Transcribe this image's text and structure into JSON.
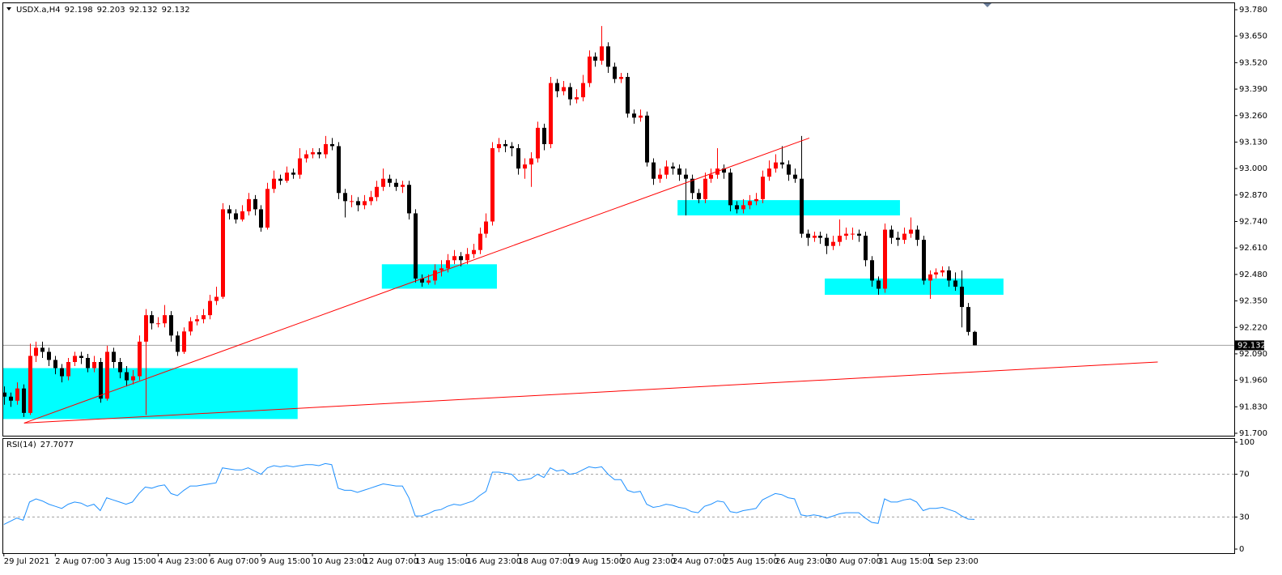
{
  "chart_data": {
    "type": "candlestick",
    "symbol": "USDX.a,H4",
    "up_color": "#ff0000",
    "down_color": "#000000",
    "current_price_line": true,
    "xlim": [
      -0.6,
      191.4
    ],
    "ylim": [
      91.7,
      93.78
    ],
    "yticks": [
      {
        "value": 91.7,
        "label": "91.700"
      },
      {
        "value": 91.83,
        "label": "91.830"
      },
      {
        "value": 91.96,
        "label": "91.960"
      },
      {
        "value": 92.09,
        "label": "92.090"
      },
      {
        "value": 92.22,
        "label": "92.220"
      },
      {
        "value": 92.35,
        "label": "92.350"
      },
      {
        "value": 92.48,
        "label": "92.480"
      },
      {
        "value": 92.61,
        "label": "92.610"
      },
      {
        "value": 92.74,
        "label": "92.740"
      },
      {
        "value": 92.87,
        "label": "92.870"
      },
      {
        "value": 93.0,
        "label": "93.000"
      },
      {
        "value": 93.13,
        "label": "93.130"
      },
      {
        "value": 93.26,
        "label": "93.260"
      },
      {
        "value": 93.39,
        "label": "93.390"
      },
      {
        "value": 93.52,
        "label": "93.520"
      },
      {
        "value": 93.65,
        "label": "93.650"
      },
      {
        "value": 93.78,
        "label": "93.780"
      }
    ],
    "categories": [
      "29 Jul 2021",
      null,
      null,
      null,
      null,
      null,
      null,
      null,
      "2 Aug 07:00",
      null,
      null,
      null,
      null,
      null,
      null,
      null,
      "3 Aug 15:00",
      null,
      null,
      null,
      null,
      null,
      null,
      null,
      "4 Aug 23:00",
      null,
      null,
      null,
      null,
      null,
      null,
      null,
      "6 Aug 07:00",
      null,
      null,
      null,
      null,
      null,
      null,
      null,
      "9 Aug 15:00",
      null,
      null,
      null,
      null,
      null,
      null,
      null,
      "10 Aug 23:00",
      null,
      null,
      null,
      null,
      null,
      null,
      null,
      "12 Aug 07:00",
      null,
      null,
      null,
      null,
      null,
      null,
      null,
      "13 Aug 15:00",
      null,
      null,
      null,
      null,
      null,
      null,
      null,
      "16 Aug 23:00",
      null,
      null,
      null,
      null,
      null,
      null,
      null,
      "18 Aug 07:00",
      null,
      null,
      null,
      null,
      null,
      null,
      null,
      "19 Aug 15:00",
      null,
      null,
      null,
      null,
      null,
      null,
      null,
      "20 Aug 23:00",
      null,
      null,
      null,
      null,
      null,
      null,
      null,
      "24 Aug 07:00",
      null,
      null,
      null,
      null,
      null,
      null,
      null,
      "25 Aug 15:00",
      null,
      null,
      null,
      null,
      null,
      null,
      null,
      "26 Aug 23:00",
      null,
      null,
      null,
      null,
      null,
      null,
      null,
      "30 Aug 07:00",
      null,
      null,
      null,
      null,
      null,
      null,
      null,
      "31 Aug 15:00",
      null,
      null,
      null,
      null,
      null,
      null,
      null,
      "1 Sep 23:00",
      null,
      null,
      null,
      null,
      null,
      null,
      null
    ],
    "ohlc": [
      [
        91.9,
        91.93,
        91.84,
        91.88
      ],
      [
        91.88,
        91.9,
        91.83,
        91.86
      ],
      [
        91.86,
        91.95,
        91.84,
        91.92
      ],
      [
        91.92,
        91.94,
        91.78,
        91.8
      ],
      [
        91.8,
        92.14,
        91.79,
        92.08
      ],
      [
        92.08,
        92.15,
        92.05,
        92.12
      ],
      [
        92.12,
        92.15,
        92.07,
        92.1
      ],
      [
        92.1,
        92.12,
        92.03,
        92.06
      ],
      [
        92.06,
        92.08,
        91.99,
        92.02
      ],
      [
        92.02,
        92.04,
        91.95,
        91.98
      ],
      [
        91.98,
        92.07,
        91.96,
        92.05
      ],
      [
        92.05,
        92.1,
        92.03,
        92.08
      ],
      [
        92.08,
        92.1,
        92.04,
        92.07
      ],
      [
        92.07,
        92.09,
        92.0,
        92.02
      ],
      [
        92.02,
        92.08,
        92.0,
        92.05
      ],
      [
        92.05,
        92.07,
        91.85,
        91.87
      ],
      [
        91.87,
        92.13,
        91.86,
        92.1
      ],
      [
        92.1,
        92.12,
        92.02,
        92.05
      ],
      [
        92.05,
        92.07,
        91.97,
        92.0
      ],
      [
        92.0,
        92.03,
        91.93,
        91.96
      ],
      [
        91.96,
        92.01,
        91.94,
        91.98
      ],
      [
        91.98,
        92.18,
        91.96,
        92.15
      ],
      [
        92.15,
        92.31,
        91.79,
        92.28
      ],
      [
        92.28,
        92.3,
        92.21,
        92.24
      ],
      [
        92.24,
        92.27,
        92.22,
        92.24
      ],
      [
        92.24,
        92.33,
        92.22,
        92.28
      ],
      [
        92.28,
        92.3,
        92.15,
        92.18
      ],
      [
        92.18,
        92.2,
        92.08,
        92.1
      ],
      [
        92.1,
        92.22,
        92.09,
        92.2
      ],
      [
        92.2,
        92.27,
        92.18,
        92.25
      ],
      [
        92.25,
        92.28,
        92.23,
        92.26
      ],
      [
        92.26,
        92.31,
        92.24,
        92.28
      ],
      [
        92.28,
        92.38,
        92.26,
        92.35
      ],
      [
        92.35,
        92.42,
        92.33,
        92.37
      ],
      [
        92.37,
        92.83,
        92.36,
        92.8
      ],
      [
        92.8,
        92.82,
        92.75,
        92.78
      ],
      [
        92.78,
        92.8,
        92.73,
        92.75
      ],
      [
        92.75,
        92.82,
        92.74,
        92.79
      ],
      [
        92.79,
        92.88,
        92.77,
        92.85
      ],
      [
        92.85,
        92.87,
        92.77,
        92.8
      ],
      [
        92.8,
        92.82,
        92.69,
        92.71
      ],
      [
        92.71,
        92.93,
        92.7,
        92.9
      ],
      [
        92.9,
        92.99,
        92.88,
        92.95
      ],
      [
        92.95,
        92.97,
        92.92,
        92.94
      ],
      [
        92.94,
        93.01,
        92.93,
        92.98
      ],
      [
        92.98,
        93.0,
        92.95,
        92.97
      ],
      [
        92.97,
        93.1,
        92.95,
        93.05
      ],
      [
        93.05,
        93.09,
        93.03,
        93.07
      ],
      [
        93.07,
        93.1,
        93.05,
        93.08
      ],
      [
        93.08,
        93.1,
        93.05,
        93.07
      ],
      [
        93.07,
        93.16,
        93.05,
        93.12
      ],
      [
        93.12,
        93.15,
        93.09,
        93.11
      ],
      [
        93.11,
        93.13,
        92.85,
        92.88
      ],
      [
        92.88,
        92.9,
        92.76,
        92.84
      ],
      [
        92.84,
        92.87,
        92.81,
        92.84
      ],
      [
        92.84,
        92.86,
        92.79,
        92.82
      ],
      [
        92.82,
        92.87,
        92.8,
        92.84
      ],
      [
        92.84,
        92.89,
        92.82,
        92.86
      ],
      [
        92.86,
        92.94,
        92.84,
        92.91
      ],
      [
        92.91,
        93.0,
        92.89,
        92.95
      ],
      [
        92.95,
        92.97,
        92.91,
        92.93
      ],
      [
        92.93,
        92.95,
        92.89,
        92.91
      ],
      [
        92.91,
        92.94,
        92.88,
        92.92
      ],
      [
        92.92,
        92.94,
        92.75,
        92.78
      ],
      [
        92.78,
        92.8,
        92.44,
        92.46
      ],
      [
        92.46,
        92.48,
        92.42,
        92.44
      ],
      [
        92.44,
        92.48,
        92.43,
        92.45
      ],
      [
        92.45,
        92.53,
        92.43,
        92.5
      ],
      [
        92.5,
        92.55,
        92.47,
        92.51
      ],
      [
        92.51,
        92.58,
        92.49,
        92.55
      ],
      [
        92.55,
        92.6,
        92.53,
        92.57
      ],
      [
        92.57,
        92.59,
        92.52,
        92.55
      ],
      [
        92.55,
        92.61,
        92.53,
        92.58
      ],
      [
        92.58,
        92.63,
        92.56,
        92.6
      ],
      [
        92.6,
        92.71,
        92.58,
        92.68
      ],
      [
        92.68,
        92.78,
        92.66,
        92.74
      ],
      [
        92.74,
        93.13,
        92.72,
        93.1
      ],
      [
        93.1,
        93.15,
        93.08,
        93.12
      ],
      [
        93.12,
        93.14,
        93.08,
        93.11
      ],
      [
        93.11,
        93.13,
        93.06,
        93.1
      ],
      [
        93.1,
        93.12,
        92.97,
        93.0
      ],
      [
        93.0,
        93.05,
        92.95,
        93.02
      ],
      [
        93.02,
        93.08,
        92.91,
        93.05
      ],
      [
        93.05,
        93.23,
        93.03,
        93.2
      ],
      [
        93.2,
        93.22,
        93.09,
        93.12
      ],
      [
        93.12,
        93.45,
        93.1,
        93.42
      ],
      [
        93.42,
        93.44,
        93.35,
        93.38
      ],
      [
        93.38,
        93.43,
        93.36,
        93.4
      ],
      [
        93.4,
        93.42,
        93.31,
        93.34
      ],
      [
        93.34,
        93.39,
        93.32,
        93.35
      ],
      [
        93.35,
        93.46,
        93.33,
        93.42
      ],
      [
        93.42,
        93.58,
        93.4,
        93.55
      ],
      [
        93.55,
        93.57,
        93.5,
        93.53
      ],
      [
        93.53,
        93.7,
        93.51,
        93.6
      ],
      [
        93.6,
        93.62,
        93.47,
        93.5
      ],
      [
        93.5,
        93.52,
        93.42,
        93.44
      ],
      [
        93.44,
        93.47,
        93.42,
        93.45
      ],
      [
        93.45,
        93.47,
        93.25,
        93.27
      ],
      [
        93.27,
        93.29,
        93.22,
        93.25
      ],
      [
        93.25,
        93.29,
        93.23,
        93.26
      ],
      [
        93.26,
        93.28,
        93.01,
        93.03
      ],
      [
        93.03,
        93.05,
        92.92,
        92.95
      ],
      [
        92.95,
        93.0,
        92.93,
        92.97
      ],
      [
        92.97,
        93.04,
        92.95,
        93.01
      ],
      [
        93.01,
        93.03,
        92.97,
        93.0
      ],
      [
        93.0,
        93.02,
        92.94,
        92.97
      ],
      [
        92.97,
        93.0,
        92.77,
        92.95
      ],
      [
        92.95,
        92.97,
        92.85,
        92.88
      ],
      [
        92.88,
        92.9,
        92.83,
        92.85
      ],
      [
        92.85,
        92.98,
        92.83,
        92.95
      ],
      [
        92.95,
        93.0,
        92.93,
        92.97
      ],
      [
        92.97,
        93.1,
        92.95,
        93.0
      ],
      [
        93.0,
        93.02,
        92.95,
        92.98
      ],
      [
        92.98,
        93.0,
        92.79,
        92.82
      ],
      [
        92.82,
        92.84,
        92.78,
        92.8
      ],
      [
        92.8,
        92.85,
        92.78,
        92.82
      ],
      [
        92.82,
        92.87,
        92.8,
        92.84
      ],
      [
        92.84,
        92.88,
        92.82,
        92.85
      ],
      [
        92.85,
        92.99,
        92.83,
        92.96
      ],
      [
        92.96,
        93.04,
        92.94,
        93.0
      ],
      [
        93.0,
        93.07,
        92.98,
        93.03
      ],
      [
        93.03,
        93.11,
        93.0,
        93.02
      ],
      [
        93.02,
        93.04,
        92.94,
        92.97
      ],
      [
        92.97,
        93.0,
        92.93,
        92.95
      ],
      [
        92.95,
        93.16,
        92.66,
        92.68
      ],
      [
        92.68,
        92.7,
        92.62,
        92.66
      ],
      [
        92.66,
        92.69,
        92.64,
        92.67
      ],
      [
        92.67,
        92.69,
        92.63,
        92.66
      ],
      [
        92.66,
        92.68,
        92.58,
        92.62
      ],
      [
        92.62,
        92.67,
        92.6,
        92.64
      ],
      [
        92.64,
        92.75,
        92.62,
        92.67
      ],
      [
        92.67,
        92.71,
        92.65,
        92.68
      ],
      [
        92.68,
        92.71,
        92.65,
        92.68
      ],
      [
        92.68,
        92.7,
        92.64,
        92.67
      ],
      [
        92.67,
        92.69,
        92.52,
        92.55
      ],
      [
        92.55,
        92.57,
        92.42,
        92.45
      ],
      [
        92.45,
        92.47,
        92.38,
        92.41
      ],
      [
        92.41,
        92.73,
        92.39,
        92.7
      ],
      [
        92.7,
        92.72,
        92.63,
        92.66
      ],
      [
        92.66,
        92.69,
        92.62,
        92.65
      ],
      [
        92.65,
        92.71,
        92.63,
        92.68
      ],
      [
        92.68,
        92.76,
        92.66,
        92.7
      ],
      [
        92.7,
        92.72,
        92.62,
        92.65
      ],
      [
        92.65,
        92.67,
        92.43,
        92.45
      ],
      [
        92.45,
        92.5,
        92.36,
        92.48
      ],
      [
        92.48,
        92.51,
        92.46,
        92.49
      ],
      [
        92.49,
        92.52,
        92.47,
        92.5
      ],
      [
        92.5,
        92.52,
        92.42,
        92.45
      ],
      [
        92.45,
        92.49,
        92.4,
        92.42
      ],
      [
        92.42,
        92.5,
        92.22,
        92.32
      ],
      [
        92.32,
        92.34,
        92.18,
        92.198
      ],
      [
        92.198,
        92.203,
        92.132,
        92.132
      ]
    ],
    "zones": [
      {
        "x": [
          -0.6,
          45.7
        ],
        "y": [
          91.77,
          92.02
        ],
        "color": "#00ffff"
      },
      {
        "x": [
          58.8,
          76.7
        ],
        "y": [
          92.41,
          92.53
        ],
        "color": "#00ffff"
      },
      {
        "x": [
          104.8,
          139.4
        ],
        "y": [
          92.77,
          92.845
        ],
        "color": "#00ffff"
      },
      {
        "x": [
          127.7,
          155.5
        ],
        "y": [
          92.38,
          92.46
        ],
        "color": "#00ffff"
      }
    ],
    "trendlines": [
      {
        "x": [
          3.15,
          125.3
        ],
        "y": [
          91.75,
          93.15
        ],
        "color": "#ff0000"
      },
      {
        "x": [
          3.15,
          179.5
        ],
        "y": [
          91.75,
          92.05
        ],
        "color": "#ff0000"
      }
    ],
    "indicator": {
      "type": "line",
      "name": "RSI(14)",
      "color": "#1e90ff",
      "ylim": [
        0,
        100
      ],
      "yticks": [
        0,
        30,
        70,
        100
      ],
      "levels": [
        30,
        70
      ],
      "values": [
        23,
        26,
        29,
        27,
        44,
        47,
        45,
        42,
        40,
        38,
        42,
        44,
        43,
        40,
        42,
        36,
        48,
        46,
        44,
        42,
        44,
        52,
        58,
        57,
        59,
        60,
        52,
        50,
        55,
        59,
        59,
        60,
        61,
        62,
        76,
        75,
        74,
        74,
        76,
        73,
        70,
        76,
        78,
        77,
        78,
        77,
        78,
        79,
        79,
        78,
        80,
        79,
        57,
        55,
        55,
        53,
        55,
        57,
        59,
        61,
        60,
        59,
        59,
        48,
        31,
        31,
        33,
        36,
        37,
        40,
        42,
        41,
        43,
        45,
        50,
        54,
        72,
        72,
        71,
        70,
        64,
        65,
        66,
        70,
        67,
        76,
        73,
        74,
        70,
        71,
        74,
        77,
        76,
        77,
        70,
        65,
        65,
        55,
        53,
        54,
        42,
        39,
        40,
        42,
        41,
        39,
        38,
        35,
        34,
        40,
        42,
        45,
        44,
        35,
        34,
        36,
        37,
        38,
        46,
        49,
        52,
        51,
        48,
        47,
        32,
        31,
        32,
        31,
        29,
        31,
        33,
        34,
        34,
        34,
        29,
        25,
        24,
        47,
        44,
        44,
        46,
        47,
        44,
        36,
        38,
        38,
        39,
        37,
        35,
        31,
        28,
        27.7077
      ]
    }
  }
}
